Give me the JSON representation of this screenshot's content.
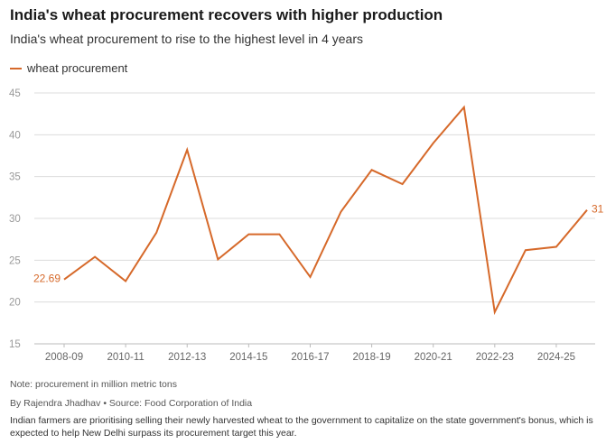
{
  "title": "India's wheat procurement recovers with higher production",
  "subtitle": "India's wheat procurement to rise to the highest level in 4 years",
  "legend_label": "wheat procurement",
  "note": "Note: procurement in million metric tons",
  "byline": "By Rajendra Jhadhav • Source: Food Corporation of India",
  "caption": "Indian farmers are prioritising selling their newly harvested wheat to the government to capitalize on the state government's bonus, which is expected to help New Delhi surpass its procurement target this year.",
  "colors": {
    "line": "#d6692a",
    "grid": "#dcdcdc",
    "tick": "#999999"
  },
  "chart_data": {
    "type": "line",
    "title": "India's wheat procurement recovers with higher production",
    "xlabel": "",
    "ylabel": "",
    "ylim": [
      15,
      45
    ],
    "yticks": [
      15,
      20,
      25,
      30,
      35,
      40,
      45
    ],
    "categories": [
      "2008-09",
      "2009-10",
      "2010-11",
      "2011-12",
      "2012-13",
      "2013-14",
      "2014-15",
      "2015-16",
      "2016-17",
      "2017-18",
      "2018-19",
      "2019-20",
      "2020-21",
      "2021-22",
      "2022-23",
      "2023-24",
      "2024-25",
      "2025-26"
    ],
    "xtick_labels": [
      "2008-09",
      "2010-11",
      "2012-13",
      "2014-15",
      "2016-17",
      "2018-19",
      "2020-21",
      "2022-23",
      "2024-25"
    ],
    "series": [
      {
        "name": "wheat procurement",
        "values": [
          22.69,
          25.4,
          22.5,
          28.3,
          38.2,
          25.1,
          28.1,
          28.1,
          23.0,
          30.8,
          35.8,
          34.1,
          39.0,
          43.3,
          18.8,
          26.2,
          26.6,
          31
        ]
      }
    ],
    "annotations": [
      {
        "index": 0,
        "text": "22.69"
      },
      {
        "index": 17,
        "text": "31"
      }
    ]
  }
}
